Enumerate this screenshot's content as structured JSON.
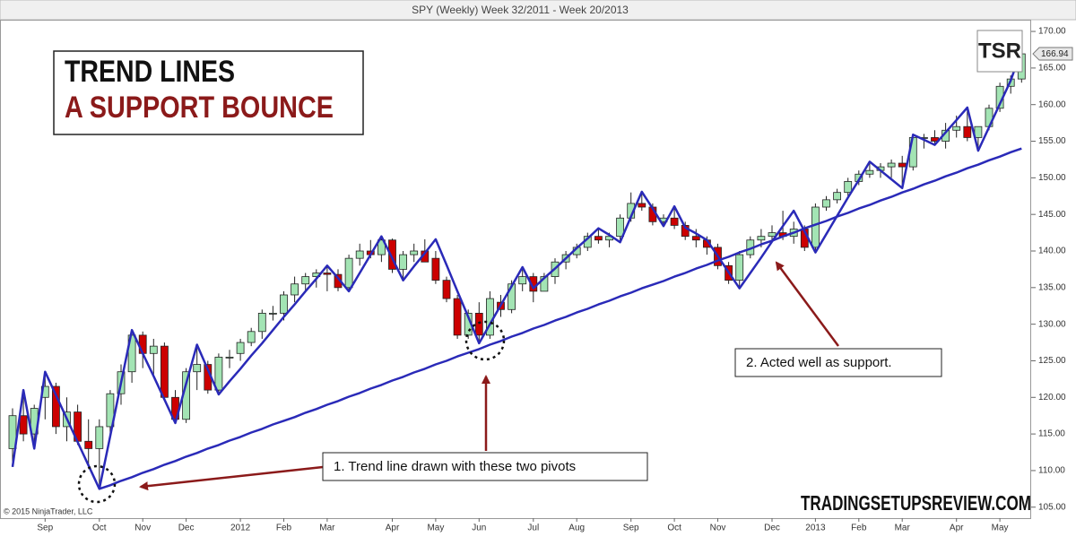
{
  "chart_data": {
    "type": "candlestick",
    "title": "SPY (Weekly)  Week 32/2011 - Week 20/2013",
    "categories": [
      null,
      null,
      null,
      "Sep",
      null,
      null,
      null,
      null,
      "Oct",
      null,
      null,
      null,
      "Nov",
      null,
      null,
      null,
      "Dec",
      null,
      null,
      null,
      null,
      "2012",
      null,
      null,
      null,
      "Feb",
      null,
      null,
      null,
      "Mar",
      null,
      null,
      null,
      null,
      null,
      "Apr",
      null,
      null,
      null,
      "May",
      null,
      null,
      null,
      "Jun",
      null,
      null,
      null,
      null,
      "Jul",
      null,
      null,
      null,
      "Aug",
      null,
      null,
      null,
      null,
      "Sep",
      null,
      null,
      null,
      "Oct",
      null,
      null,
      null,
      "Nov",
      null,
      null,
      null,
      null,
      "Dec",
      null,
      null,
      null,
      "2013",
      null,
      null,
      null,
      "Feb",
      null,
      null,
      null,
      "Mar",
      null,
      null,
      null,
      null,
      "Apr",
      null,
      null,
      null,
      "May",
      null,
      null
    ],
    "open": [
      113,
      117.5,
      115,
      120,
      121.5,
      116,
      118,
      114,
      113,
      116,
      120.5,
      123.5,
      128.5,
      126,
      127,
      120,
      117,
      123.5,
      124.5,
      121,
      125.5,
      126,
      127.5,
      129,
      131.5,
      131.5,
      134,
      135.5,
      136.5,
      137,
      136.8,
      135,
      139,
      140,
      139.5,
      141.5,
      137.5,
      139.5,
      140,
      139,
      136,
      133.5,
      128.5,
      131.5,
      128.5,
      133,
      132,
      135.5,
      136.5,
      134.5,
      136.5,
      138.5,
      139.5,
      140.5,
      142,
      141.5,
      142,
      144.5,
      146.5,
      146,
      144,
      144.5,
      143.5,
      142,
      141.5,
      140.5,
      138,
      136,
      139.5,
      141.5,
      142,
      142.5,
      142,
      143,
      140.5,
      146,
      147,
      148,
      149.5,
      150.5,
      151,
      151.5,
      152,
      151.5,
      155.5,
      155.5,
      155,
      156.5,
      157,
      155.5,
      157,
      159.5,
      162.5,
      163.5
    ],
    "high": [
      118.5,
      121,
      119,
      123.5,
      122,
      120,
      119,
      117,
      117,
      121,
      124.5,
      129.2,
      129,
      128,
      127.5,
      121,
      124,
      127.2,
      125,
      126,
      126.5,
      128,
      129.5,
      132,
      132.5,
      134.5,
      136.5,
      137,
      137.5,
      138,
      137.5,
      139.5,
      141,
      141.5,
      142,
      141.7,
      140,
      141,
      141.6,
      140,
      136.5,
      134,
      132,
      133,
      134.5,
      134,
      136,
      137.8,
      137,
      137,
      139,
      140,
      141,
      142.5,
      143.1,
      142.5,
      145,
      148,
      148.1,
      146.5,
      145,
      146.1,
      144,
      143,
      142,
      141,
      138.5,
      140,
      142,
      143,
      143.5,
      145.5,
      144,
      143.5,
      146.5,
      147.5,
      148.5,
      150,
      151,
      152.2,
      152,
      152.5,
      153,
      156,
      156,
      156.5,
      157.5,
      158.5,
      159.6,
      157,
      160,
      163,
      164,
      168
    ],
    "low": [
      110.5,
      114,
      113,
      117,
      115,
      114,
      113.5,
      110.7,
      107.5,
      114.7,
      119,
      122,
      124,
      122.9,
      119.7,
      116.5,
      116.5,
      121,
      120.5,
      120.4,
      124,
      125,
      127,
      128,
      130.5,
      130.5,
      133,
      134.5,
      135,
      134.5,
      134.5,
      134.5,
      138,
      139,
      138.5,
      137,
      136,
      138.5,
      138.5,
      135.5,
      133,
      128,
      128,
      127.4,
      128,
      131,
      131.5,
      134.5,
      133,
      134.5,
      135.5,
      137.5,
      139,
      140,
      141,
      140.5,
      141.2,
      144,
      145.5,
      143.5,
      143.4,
      143,
      141.5,
      140.5,
      139.5,
      137.5,
      135.5,
      134.9,
      139,
      140.5,
      141.5,
      141.5,
      141,
      140,
      139.8,
      145.5,
      146.5,
      147.5,
      149,
      150,
      150,
      150,
      148.6,
      151,
      154,
      154.5,
      154,
      155.5,
      155,
      153.7,
      156.5,
      159,
      161.5,
      163
    ],
    "close": [
      117.5,
      115,
      118.5,
      121.5,
      116,
      118,
      114,
      113,
      116,
      120.5,
      123.5,
      128.5,
      126,
      127,
      120,
      117,
      123.5,
      124.5,
      121,
      125.5,
      125.5,
      127.5,
      129,
      131.5,
      131.5,
      134,
      135.5,
      136.5,
      137,
      136.8,
      135,
      139,
      140,
      139.5,
      141.5,
      137.5,
      139.5,
      140,
      138.5,
      136,
      133.5,
      128.5,
      131.5,
      128.5,
      133.5,
      132,
      135.5,
      136.5,
      134.5,
      136.5,
      138.5,
      139.5,
      140.5,
      142,
      141.5,
      142,
      144.5,
      146.5,
      146,
      144,
      144.5,
      143.5,
      142,
      141.5,
      140.5,
      138,
      136,
      139.5,
      141.5,
      142,
      142.5,
      142,
      143,
      140.5,
      146,
      147,
      148,
      149.5,
      150.5,
      151,
      151.5,
      152,
      151.5,
      155.5,
      155.5,
      155,
      156.5,
      157,
      155.5,
      157,
      159.5,
      162.5,
      163.5,
      166.94
    ],
    "up_color": "#a3e4b4",
    "down_color": "#cc0000",
    "lines": [
      {
        "color": "#2a2ab8",
        "values": [
          110.5,
          121.0,
          113.0,
          123.5,
          120.3,
          117.1,
          113.9,
          110.7,
          107.5,
          114.7,
          122.0,
          129.2,
          126.0,
          122.9,
          119.7,
          116.5,
          121.9,
          127.2,
          123.8,
          120.4,
          122.2,
          123.9,
          125.7,
          127.4,
          129.2,
          131.0,
          132.7,
          134.5,
          136.2,
          138.0,
          136.3,
          134.5,
          137.0,
          139.5,
          142.0,
          139.0,
          136.0,
          137.9,
          139.7,
          141.6,
          138.1,
          134.5,
          131.0,
          127.4,
          130.0,
          132.6,
          135.2,
          137.8,
          134.9,
          136.3,
          137.6,
          139.0,
          140.4,
          141.7,
          143.1,
          142.2,
          141.2,
          144.7,
          148.1,
          145.8,
          143.4,
          146.1,
          143.2,
          142.4,
          141.5,
          139.3,
          137.1,
          134.9,
          137.0,
          139.1,
          141.3,
          143.4,
          145.5,
          142.7,
          139.8,
          142.3,
          144.8,
          147.3,
          149.7,
          152.2,
          151.0,
          149.8,
          148.6,
          155.9,
          155.2,
          154.5,
          156.2,
          157.9,
          159.6,
          153.7,
          156.9,
          160.1,
          163.3,
          167.5
        ]
      },
      {
        "color": "#2a2ab8",
        "values": [
          null,
          null,
          null,
          null,
          null,
          null,
          null,
          null,
          107.5,
          108.0,
          108.6,
          109.1,
          109.7,
          110.2,
          110.8,
          111.3,
          111.9,
          112.4,
          113.0,
          113.5,
          114.1,
          114.6,
          115.2,
          115.7,
          116.3,
          116.8,
          117.3,
          117.9,
          118.4,
          119.0,
          119.5,
          120.1,
          120.6,
          121.2,
          121.7,
          122.3,
          122.8,
          123.4,
          123.9,
          124.5,
          125.0,
          125.6,
          126.1,
          126.6,
          127.2,
          127.7,
          128.3,
          128.8,
          129.4,
          129.9,
          130.5,
          131.0,
          131.6,
          132.1,
          132.7,
          133.2,
          133.8,
          134.3,
          134.9,
          135.4,
          135.9,
          136.5,
          137.0,
          137.6,
          138.1,
          138.7,
          139.2,
          139.8,
          140.3,
          140.9,
          141.4,
          142.0,
          142.5,
          143.1,
          143.6,
          144.1,
          144.7,
          145.2,
          145.8,
          146.3,
          146.9,
          147.4,
          148.0,
          148.5,
          149.1,
          149.6,
          150.2,
          150.7,
          151.3,
          151.8,
          152.4,
          152.9,
          153.5,
          154.0
        ]
      }
    ],
    "ylim": [
      103.5,
      171.6
    ],
    "yticks": [
      {
        "value": 105,
        "label": "105.00"
      },
      {
        "value": 110,
        "label": "110.00"
      },
      {
        "value": 115,
        "label": "115.00"
      },
      {
        "value": 120,
        "label": "120.00"
      },
      {
        "value": 125,
        "label": "125.00"
      },
      {
        "value": 130,
        "label": "130.00"
      },
      {
        "value": 135,
        "label": "135.00"
      },
      {
        "value": 140,
        "label": "140.00"
      },
      {
        "value": 145,
        "label": "145.00"
      },
      {
        "value": 150,
        "label": "150.00"
      },
      {
        "value": 155,
        "label": "155.00"
      },
      {
        "value": 160,
        "label": "160.00"
      },
      {
        "value": 165,
        "label": "165.00"
      },
      {
        "value": 170,
        "label": "170.00"
      }
    ],
    "grid": false,
    "headline": [
      "TREND LINES",
      "A SUPPORT BOUNCE"
    ],
    "annotations": [
      "1. Trend line drawn with these two pivots",
      "2. Acted well as support."
    ],
    "copyright": "© 2015 NinjaTrader, LLC",
    "logo": "TSR",
    "watermark": "TRADINGSETUPSREVIEW.COM"
  }
}
